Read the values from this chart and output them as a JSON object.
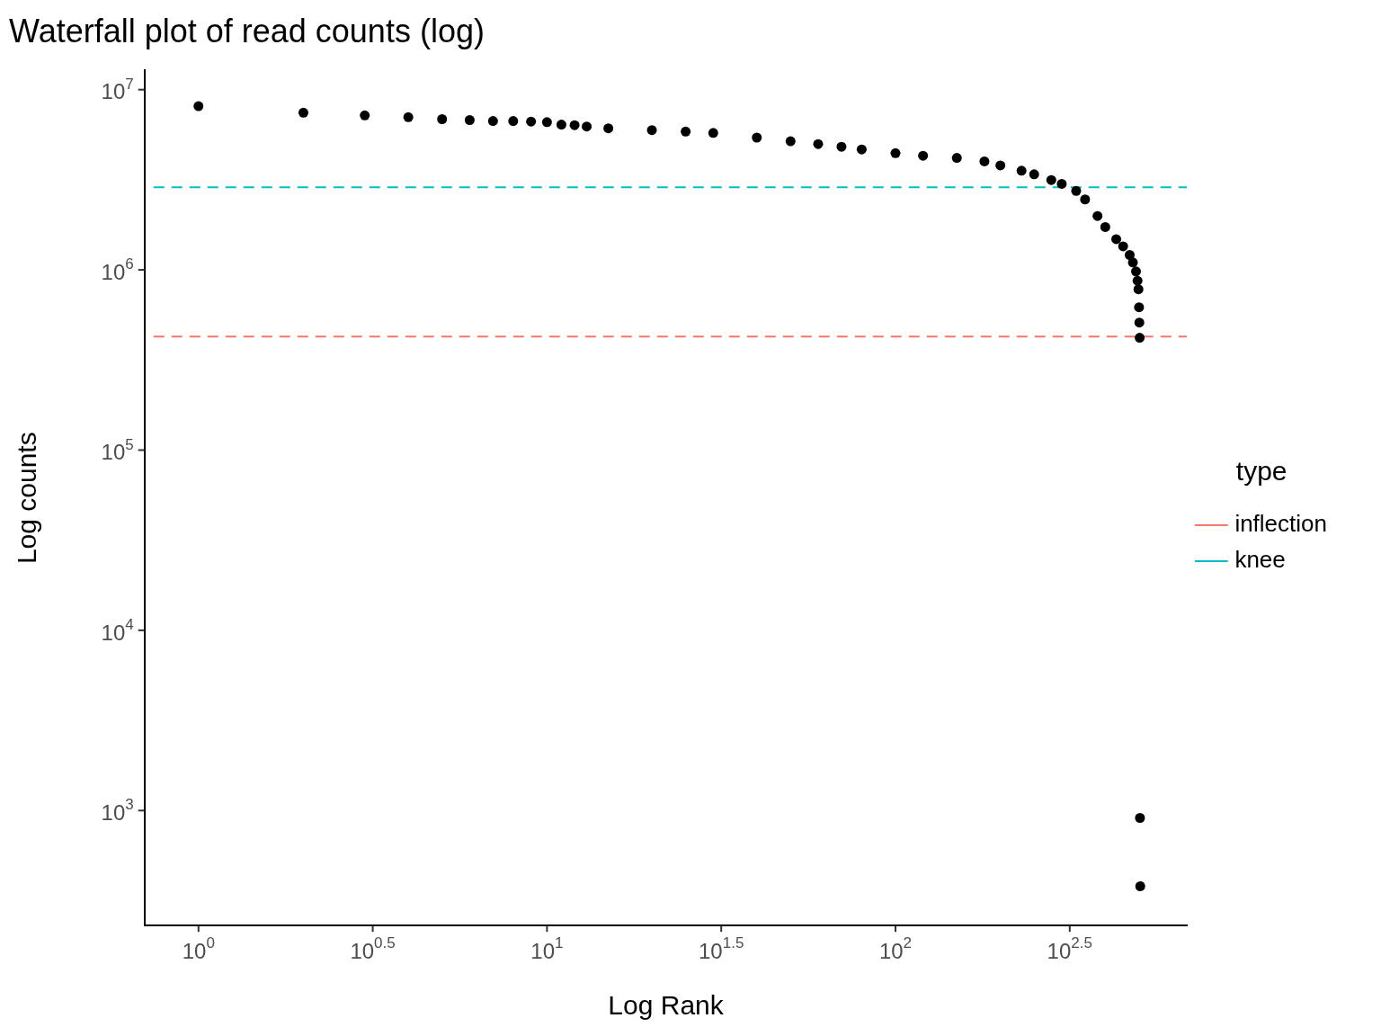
{
  "chart_data": {
    "type": "scatter",
    "title": "Waterfall plot of read counts (log)",
    "xlabel": "Log Rank",
    "ylabel": "Log counts",
    "legend_title": "type",
    "legend": "right",
    "grid": false,
    "log": "xy",
    "marker": "circle",
    "x": [
      1,
      2,
      3,
      4,
      5,
      6,
      7,
      8,
      9,
      10,
      11,
      12,
      13,
      15,
      20,
      25,
      30,
      40,
      50,
      60,
      70,
      80,
      100,
      120,
      150,
      180,
      200,
      230,
      250,
      280,
      300,
      330,
      350,
      380,
      400,
      430,
      450,
      470,
      480,
      490,
      495,
      498,
      500,
      501,
      502,
      503,
      504
    ],
    "series": [
      {
        "color": "#000000",
        "values": [
          8100000,
          7450000,
          7200000,
          7030000,
          6860000,
          6780000,
          6700000,
          6700000,
          6650000,
          6600000,
          6400000,
          6350000,
          6240000,
          6100000,
          5960000,
          5850000,
          5750000,
          5420000,
          5170000,
          4990000,
          4820000,
          4660000,
          4440000,
          4300000,
          4180000,
          4000000,
          3800000,
          3550000,
          3390000,
          3150000,
          3000000,
          2740000,
          2460000,
          1990000,
          1730000,
          1480000,
          1350000,
          1210000,
          1100000,
          980000,
          870000,
          780000,
          620000,
          510000,
          420000,
          910,
          380
        ]
      }
    ],
    "ref_lines": [
      {
        "axis": "y",
        "value": 426000,
        "label": "inflection",
        "color": "#f8766d",
        "line_style": "dashed"
      },
      {
        "axis": "y",
        "value": 2870000,
        "label": "knee",
        "color": "#00bfc4",
        "line_style": "dashed"
      }
    ],
    "xlim": [
      0.743,
      687
    ],
    "ylim": [
      230,
      12800000
    ],
    "xticks": [
      {
        "value": 1,
        "label": "10$^{0}$"
      },
      {
        "value": 3.1623,
        "label": "10$^{0.5}$"
      },
      {
        "value": 10,
        "label": "10$^{1}$"
      },
      {
        "value": 31.623,
        "label": "10$^{1.5}$"
      },
      {
        "value": 100,
        "label": "10$^{2}$"
      },
      {
        "value": 316.23,
        "label": "10$^{2.5}$"
      }
    ],
    "yticks": [
      {
        "value": 1000,
        "label": "10$^{3}$"
      },
      {
        "value": 10000,
        "label": "10$^{4}$"
      },
      {
        "value": 100000,
        "label": "10$^{5}$"
      },
      {
        "value": 1000000,
        "label": "10$^{6}$"
      },
      {
        "value": 10000000,
        "label": "10$^{7}$"
      }
    ]
  }
}
